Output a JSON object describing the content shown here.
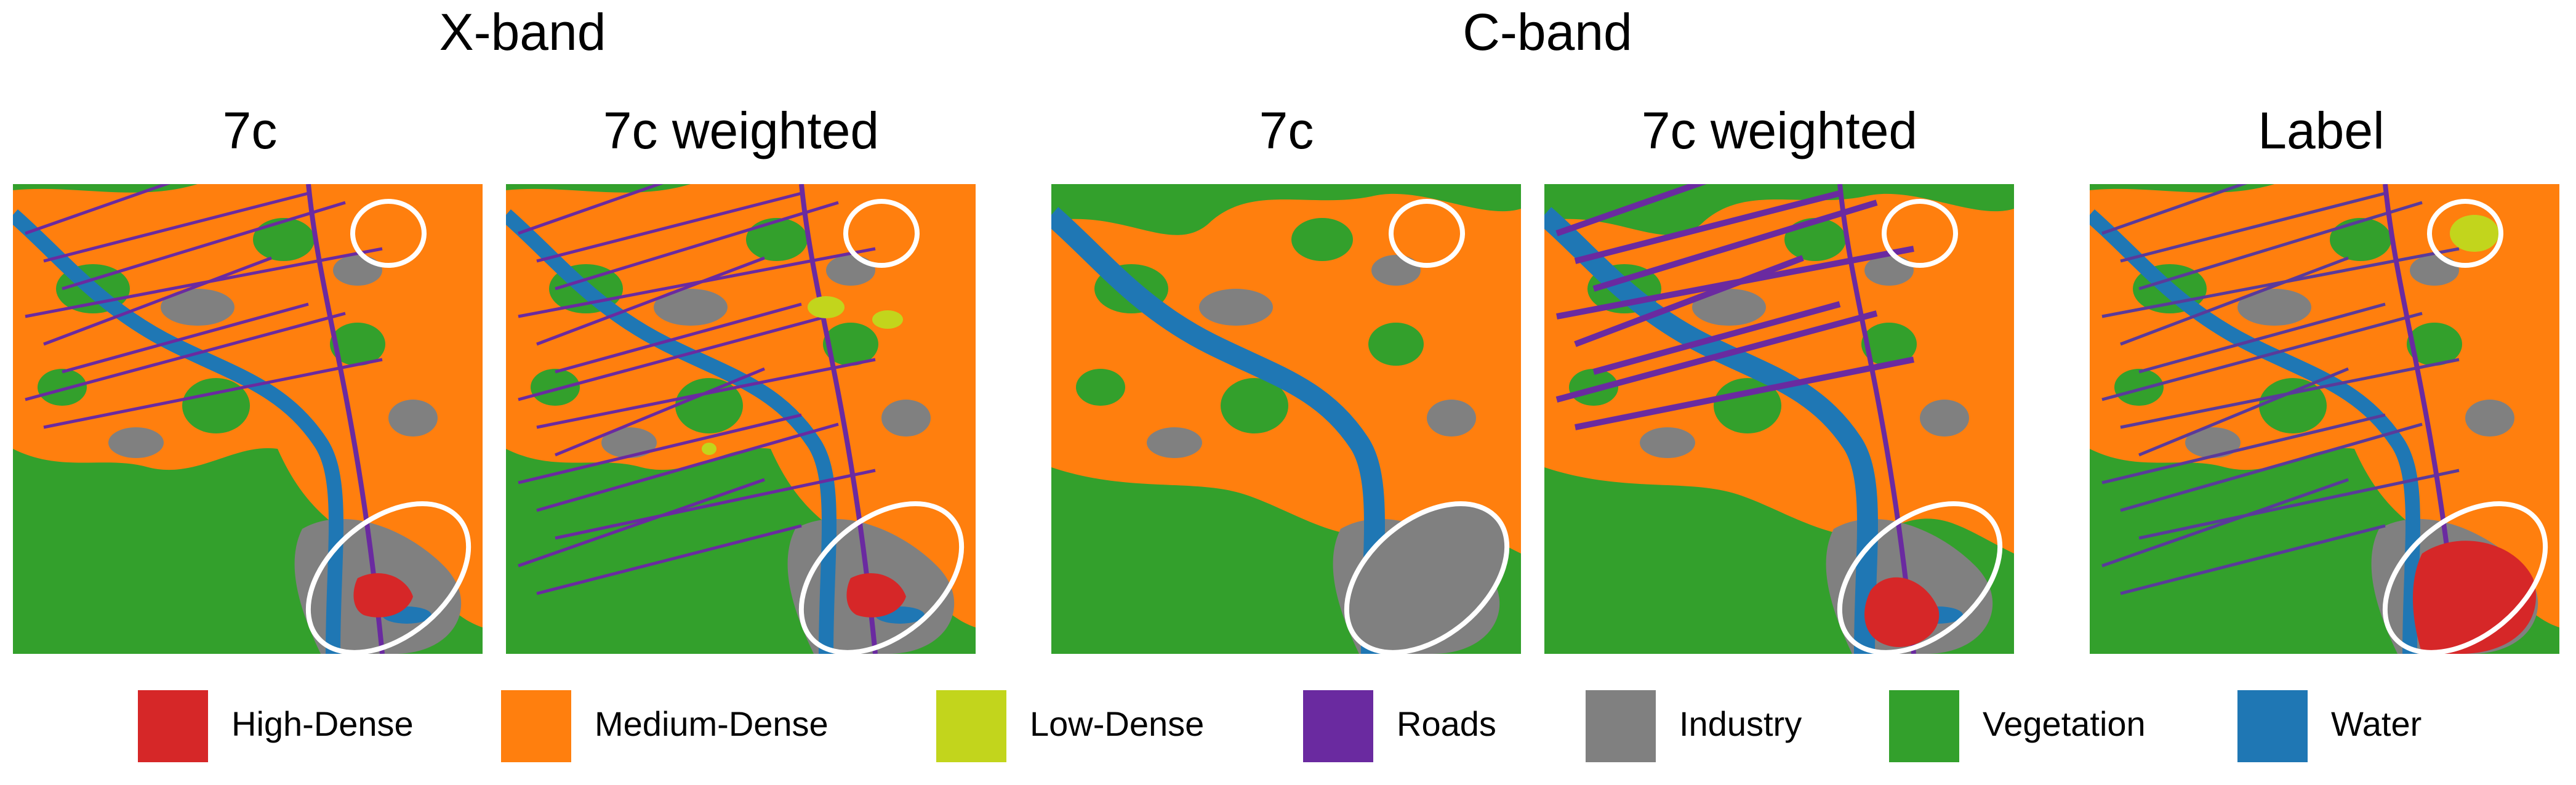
{
  "header": {
    "groups": [
      {
        "label": "X-band"
      },
      {
        "label": "C-band"
      }
    ]
  },
  "panels": [
    {
      "title": "7c"
    },
    {
      "title": "7c weighted"
    },
    {
      "title": "7c"
    },
    {
      "title": "7c weighted"
    },
    {
      "title": "Label"
    }
  ],
  "legend": [
    {
      "label": "High-Dense",
      "color": "#d62728"
    },
    {
      "label": "Medium-Dense",
      "color": "#ff7f0e"
    },
    {
      "label": "Low-Dense",
      "color": "#c2d51c"
    },
    {
      "label": "Roads",
      "color": "#6a2aa0"
    },
    {
      "label": "Industry",
      "color": "#808080"
    },
    {
      "label": "Vegetation",
      "color": "#33a02c"
    },
    {
      "label": "Water",
      "color": "#1f77b4"
    }
  ]
}
